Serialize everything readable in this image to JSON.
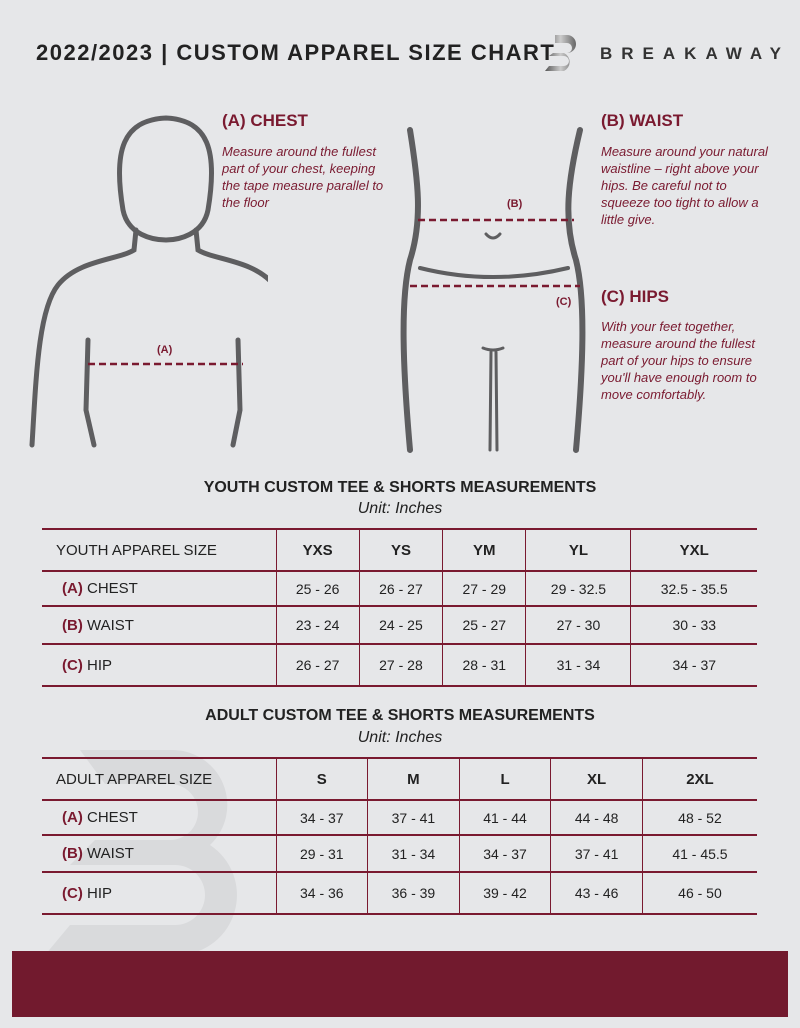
{
  "header": {
    "title": "2022/2023  |  CUSTOM APPAREL SIZE CHART",
    "brand": "BREAKAWAY"
  },
  "guide": {
    "chest": {
      "title": "(A) CHEST",
      "text": "Measure around the fullest part of your chest, keeping the tape measure parallel to the floor",
      "marker": "(A)"
    },
    "waist": {
      "title": "(B) WAIST",
      "text": "Measure around your natural waistline – right above your hips. Be careful not to squeeze too tight to allow a little give.",
      "marker": "(B)"
    },
    "hips": {
      "title": "(C) HIPS",
      "text": "With your feet together, measure around the fullest part of your hips to ensure you'll have enough room to move comfortably.",
      "marker": "(C)"
    }
  },
  "youth": {
    "title": "YOUTH CUSTOM TEE & SHORTS MEASUREMENTS",
    "unit": "Unit: Inches",
    "header": "YOUTH APPAREL SIZE",
    "sizes": [
      "YXS",
      "YS",
      "YM",
      "YL",
      "YXL"
    ],
    "rows": [
      {
        "code": "(A)",
        "name": "CHEST",
        "values": [
          "25 - 26",
          "26 - 27",
          "27 - 29",
          "29 - 32.5",
          "32.5 - 35.5"
        ]
      },
      {
        "code": "(B)",
        "name": "WAIST",
        "values": [
          "23 - 24",
          "24 - 25",
          "25 - 27",
          "27 - 30",
          "30 - 33"
        ]
      },
      {
        "code": "(C)",
        "name": "HIP",
        "values": [
          "26 - 27",
          "27 - 28",
          "28 - 31",
          "31 - 34",
          "34 - 37"
        ]
      }
    ]
  },
  "adult": {
    "title": "ADULT CUSTOM TEE & SHORTS MEASUREMENTS",
    "unit": "Unit: Inches",
    "header": "ADULT APPAREL SIZE",
    "sizes": [
      "S",
      "M",
      "L",
      "XL",
      "2XL"
    ],
    "rows": [
      {
        "code": "(A)",
        "name": "CHEST",
        "values": [
          "34 - 37",
          "37 - 41",
          "41 - 44",
          "44 - 48",
          "48 - 52"
        ]
      },
      {
        "code": "(B)",
        "name": "WAIST",
        "values": [
          "29 - 31",
          "31 - 34",
          "34 - 37",
          "37 - 41",
          "41 - 45.5"
        ]
      },
      {
        "code": "(C)",
        "name": "HIP",
        "values": [
          "34 - 36",
          "36 - 39",
          "39 - 42",
          "43 - 46",
          "46 - 50"
        ]
      }
    ]
  },
  "colors": {
    "accent": "#7a1a30",
    "background": "#e6e7e9"
  }
}
